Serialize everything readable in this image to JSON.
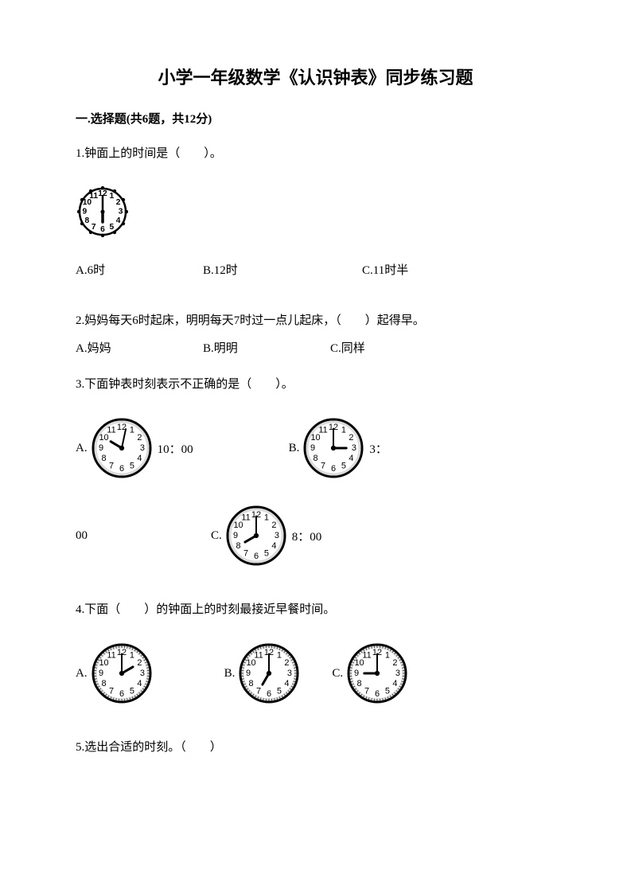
{
  "title": "小学一年级数学《认识钟表》同步练习题",
  "section": "一.选择题(共6题，共12分)",
  "q1": {
    "text": "1.钟面上的时间是（　　）。",
    "clock": {
      "hour": 6,
      "minute": 0,
      "size": 64,
      "style": "ornate"
    },
    "opts": {
      "a": "A.6时",
      "b": "B.12时",
      "c": "C.11时半"
    }
  },
  "q2": {
    "text": "2.妈妈每天6时起床，明明每天7时过一点儿起床，（　　）起得早。",
    "opts": {
      "a": "A.妈妈",
      "b": "B.明明",
      "c": "C.同样"
    }
  },
  "q3": {
    "text": "3.下面钟表时刻表示不正确的是（　　）。",
    "optA": {
      "label": "A.",
      "after": "10：00",
      "clock": {
        "hour": 10,
        "minute": 2,
        "size": 78,
        "style": "plain"
      }
    },
    "optB": {
      "label": "B.",
      "after": "3：",
      "clock": {
        "hour": 3,
        "minute": 0,
        "size": 78,
        "style": "plain"
      }
    },
    "contLine": "00",
    "optC": {
      "label": "C.",
      "after": "8：00",
      "clock": {
        "hour": 8,
        "minute": 0,
        "size": 78,
        "style": "plain"
      }
    }
  },
  "q4": {
    "text": "4.下面（　　）的钟面上的时刻最接近早餐时间。",
    "optA": {
      "label": "A.",
      "clock": {
        "hour": 2,
        "minute": 0,
        "size": 78,
        "style": "dash"
      }
    },
    "optB": {
      "label": "B.",
      "clock": {
        "hour": 7,
        "minute": 0,
        "size": 78,
        "style": "dash"
      }
    },
    "optC": {
      "label": "C.",
      "clock": {
        "hour": 9,
        "minute": 0,
        "size": 78,
        "style": "dash"
      }
    }
  },
  "q5": {
    "text": "5.选出合适的时刻。（　　）"
  },
  "colors": {
    "bg": "#ffffff",
    "ink": "#000000",
    "clockFace": "#ffffff",
    "clockStroke": "#000000",
    "grayFill": "#dcdcdc"
  }
}
